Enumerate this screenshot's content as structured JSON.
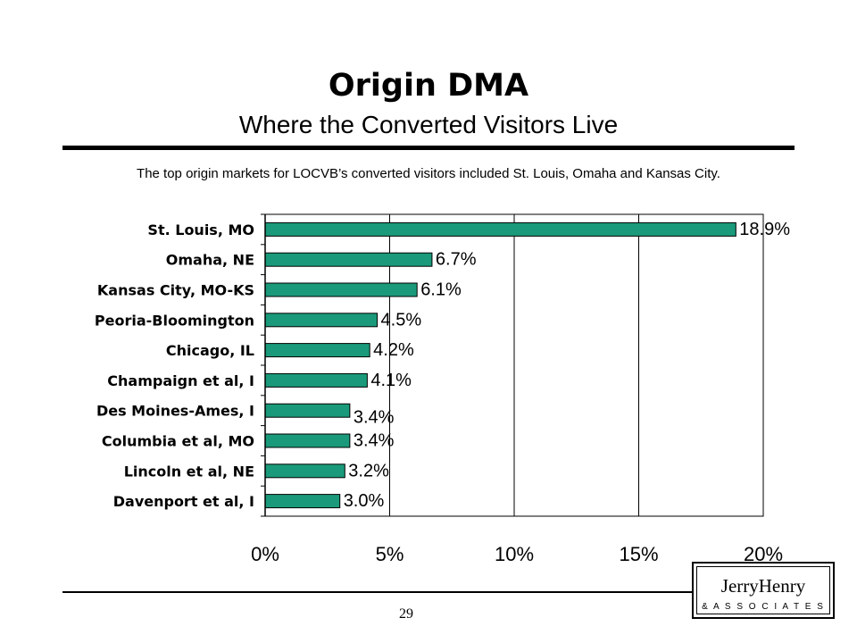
{
  "slide": {
    "title": "Origin DMA",
    "subtitle": "Where the Converted Visitors Live",
    "caption": "The top origin markets for LOCVB’s converted visitors included St. Louis, Omaha and Kansas City.",
    "page_number": "29"
  },
  "logo": {
    "name": "JerryHenry",
    "sub": "& A S S O C I A T E S"
  },
  "colors": {
    "bar": "#1a9a7a",
    "bar_edge": "#000000"
  },
  "chart_data": {
    "type": "bar",
    "orientation": "horizontal",
    "categories": [
      "St. Louis, MO",
      "Omaha, NE",
      "Kansas City, MO-KS",
      "Peoria-Bloomington",
      "Chicago, IL",
      "Champaign et al, I",
      "Des Moines-Ames, I",
      "Columbia et al, MO",
      "Lincoln et al, NE",
      "Davenport et al, I"
    ],
    "values": [
      18.9,
      6.7,
      6.1,
      4.5,
      4.2,
      4.1,
      3.4,
      3.4,
      3.2,
      3.0
    ],
    "data_labels": [
      "18.9%",
      "6.7%",
      "6.1%",
      "4.5%",
      "4.2%",
      "4.1%",
      "3.4%",
      "3.4%",
      "3.2%",
      "3.0%"
    ],
    "x_ticks": [
      0,
      5,
      10,
      15,
      20
    ],
    "x_tick_labels": [
      "0%",
      "5%",
      "10%",
      "15%",
      "20%"
    ],
    "xlim": [
      0,
      20
    ],
    "grid": "vertical",
    "legend": "none"
  }
}
